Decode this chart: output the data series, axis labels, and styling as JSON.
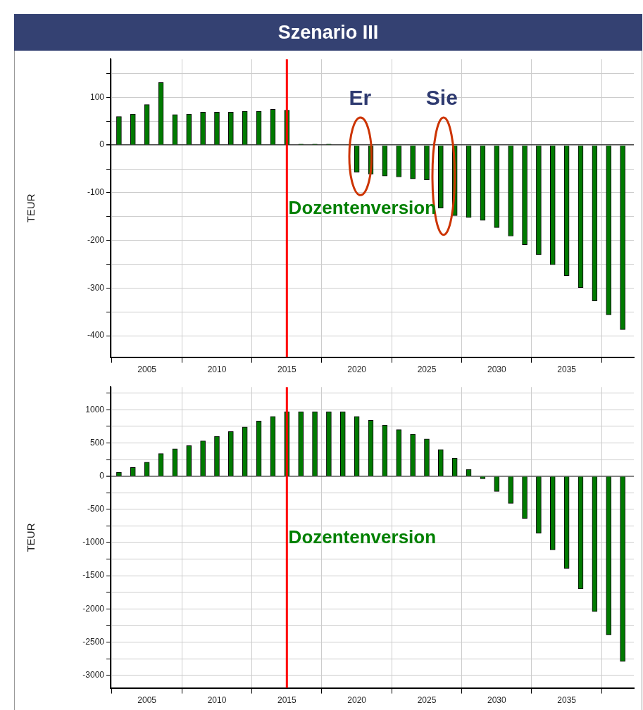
{
  "chart_data": [
    {
      "type": "bar",
      "title": "Szenario III",
      "ylabel": "TEUR",
      "color": "#007a00",
      "x": [
        2003,
        2004,
        2005,
        2006,
        2007,
        2008,
        2009,
        2010,
        2011,
        2012,
        2013,
        2014,
        2015,
        2016,
        2017,
        2018,
        2019,
        2020,
        2021,
        2022,
        2023,
        2024,
        2025,
        2026,
        2027,
        2028,
        2029,
        2030,
        2031,
        2032,
        2033,
        2034,
        2035,
        2036,
        2037,
        2038,
        2039
      ],
      "values": [
        60,
        65,
        85,
        131,
        64,
        65,
        69,
        69,
        69,
        71,
        71,
        75,
        73,
        2,
        2,
        2,
        0,
        -57,
        -61,
        -65,
        -67,
        -71,
        -73,
        -132,
        -148,
        -152,
        -158,
        -173,
        -191,
        -209,
        -230,
        -251,
        -274,
        -299,
        -327,
        -356,
        -387
      ],
      "xlim": [
        2002.4,
        2039.8
      ],
      "xticks": [
        2005,
        2010,
        2015,
        2020,
        2025,
        2030,
        2035
      ],
      "ylim": [
        -445,
        180
      ],
      "yticks": [
        {
          "value": 150,
          "label": null
        },
        100,
        {
          "value": 50,
          "label": null
        },
        0,
        {
          "value": -50,
          "label": null
        },
        -100,
        {
          "value": -150,
          "label": null
        },
        -200,
        {
          "value": -250,
          "label": null
        },
        -300,
        {
          "value": -350,
          "label": null
        },
        -400
      ],
      "grid": true,
      "ref_lines": [
        {
          "axis": "x",
          "value": 2015,
          "color": "#ff0000"
        }
      ],
      "annotations": [
        "Er",
        "Sie",
        "Dozentenversion"
      ]
    },
    {
      "type": "bar",
      "ylabel": "TEUR",
      "color": "#007a00",
      "x": [
        2003,
        2004,
        2005,
        2006,
        2007,
        2008,
        2009,
        2010,
        2011,
        2012,
        2013,
        2014,
        2015,
        2016,
        2017,
        2018,
        2019,
        2020,
        2021,
        2022,
        2023,
        2024,
        2025,
        2026,
        2027,
        2028,
        2029,
        2030,
        2031,
        2032,
        2033,
        2034,
        2035,
        2036,
        2037,
        2038,
        2039
      ],
      "values": [
        60,
        130,
        210,
        340,
        410,
        460,
        530,
        600,
        670,
        740,
        830,
        900,
        970,
        970,
        970,
        970,
        970,
        900,
        840,
        770,
        700,
        630,
        560,
        400,
        270,
        100,
        -40,
        -230,
        -410,
        -640,
        -860,
        -1110,
        -1390,
        -1700,
        -2040,
        -2390,
        -2790
      ],
      "xlim": [
        2002.4,
        2039.8
      ],
      "xticks": [
        2005,
        2010,
        2015,
        2020,
        2025,
        2030,
        2035
      ],
      "ylim": [
        -3190,
        1340
      ],
      "yticks": [
        {
          "value": 1250,
          "label": null
        },
        1000,
        {
          "value": 750,
          "label": null
        },
        500,
        {
          "value": 250,
          "label": null
        },
        0,
        {
          "value": -250,
          "label": null
        },
        -500,
        {
          "value": -750,
          "label": null
        },
        -1000,
        {
          "value": -1250,
          "label": null
        },
        -1500,
        {
          "value": -1750,
          "label": null
        },
        -2000,
        {
          "value": -2250,
          "label": null
        },
        -2500,
        {
          "value": -2750,
          "label": null
        },
        -3000
      ],
      "grid": true,
      "ref_lines": [
        {
          "axis": "x",
          "value": 2015,
          "color": "#ff0000"
        }
      ],
      "annotations": [
        "Dozentenversion"
      ]
    }
  ]
}
